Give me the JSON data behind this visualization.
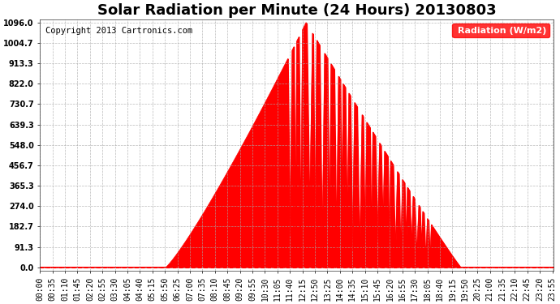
{
  "title": "Solar Radiation per Minute (24 Hours) 20130803",
  "copyright_text": "Copyright 2013 Cartronics.com",
  "ylabel": "Radiation (W/m2)",
  "yticks": [
    0.0,
    91.3,
    182.7,
    274.0,
    365.3,
    456.7,
    548.0,
    639.3,
    730.7,
    822.0,
    913.3,
    1004.7,
    1096.0
  ],
  "ymax": 1096.0,
  "ymin": 0.0,
  "background_color": "#ffffff",
  "plot_bg_color": "#ffffff",
  "fill_color": "#ff0000",
  "line_color": "#ff0000",
  "grid_color": "#aaaaaa",
  "dashed_line_color": "#ff0000",
  "title_fontsize": 13,
  "copyright_fontsize": 7.5,
  "tick_fontsize": 7,
  "legend_bg": "#ff0000",
  "legend_text_color": "#ffffff"
}
